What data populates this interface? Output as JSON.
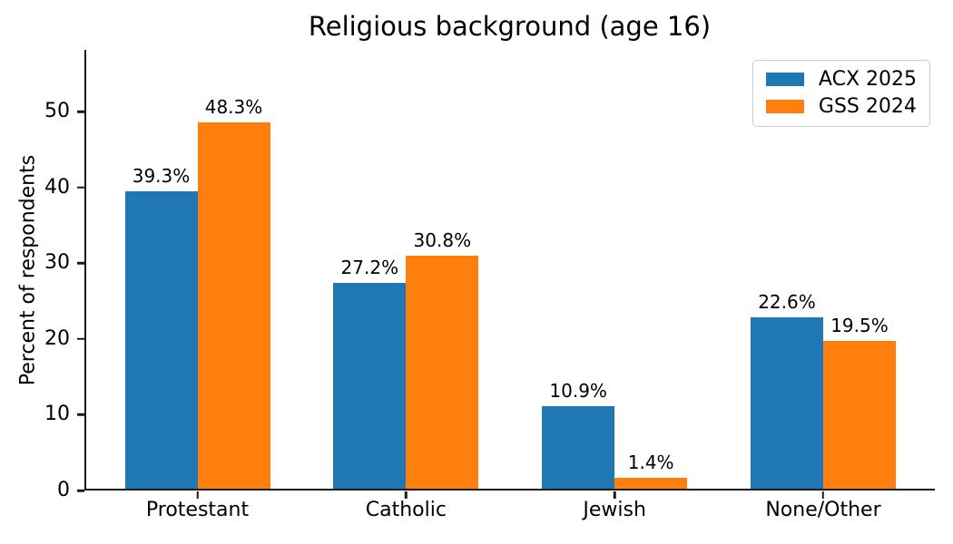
{
  "figure": {
    "title": "Religious background (age 16)",
    "ylabel": "Percent of respondents"
  },
  "chart_data": {
    "type": "bar",
    "title": "Religious background (age 16)",
    "xlabel": "",
    "ylabel": "Percent of respondents",
    "categories": [
      "Protestant",
      "Catholic",
      "Jewish",
      "None/Other"
    ],
    "series": [
      {
        "name": "ACX 2025",
        "color": "#1f77b4",
        "values": [
          39.3,
          27.2,
          10.9,
          22.6
        ],
        "value_labels": [
          "39.3%",
          "27.2%",
          "10.9%",
          "22.6%"
        ]
      },
      {
        "name": "GSS 2024",
        "color": "#ff7f0e",
        "values": [
          48.3,
          30.8,
          1.4,
          19.5
        ],
        "value_labels": [
          "48.3%",
          "30.8%",
          "1.4%",
          "19.5%"
        ]
      }
    ],
    "y_ticks": [
      0,
      10,
      20,
      30,
      40,
      50
    ],
    "ylim": [
      0,
      58.15
    ],
    "grid": false,
    "legend_position": "upper right"
  }
}
